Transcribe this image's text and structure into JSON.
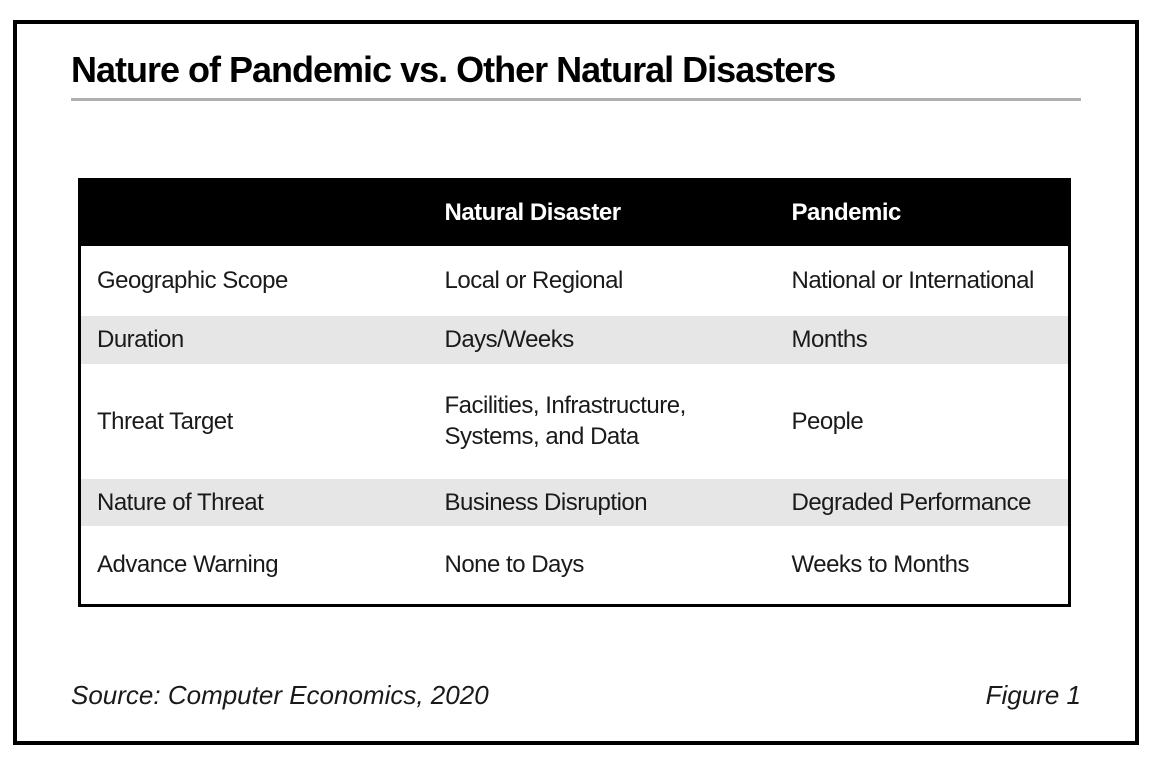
{
  "chart_data": {
    "type": "table",
    "title": "Nature of Pandemic vs. Other Natural Disasters",
    "columns": [
      "",
      "Natural Disaster",
      "Pandemic"
    ],
    "rows": [
      [
        "Geographic Scope",
        "Local or Regional",
        "National or International"
      ],
      [
        "Duration",
        "Days/Weeks",
        "Months"
      ],
      [
        "Threat Target",
        "Facilities, Infrastructure, Systems, and Data",
        "People"
      ],
      [
        "Nature of Threat",
        "Business Disruption",
        "Degraded Performance"
      ],
      [
        "Advance Warning",
        "None to Days",
        "Weeks to Months"
      ]
    ],
    "source": "Source: Computer Economics, 2020",
    "figure_label": "Figure 1",
    "layout": {
      "header_style": "black band with white bold text",
      "stripe_rows": [
        2,
        4
      ],
      "grid": "no vertical column rules, outer black border"
    }
  },
  "colors": {
    "header_bg": "#000000",
    "header_text": "#ffffff",
    "stripe": "#e6e6e6",
    "frame_border": "#000000",
    "title_rule": "#b0b0b0",
    "text": "#1a1a1a"
  }
}
